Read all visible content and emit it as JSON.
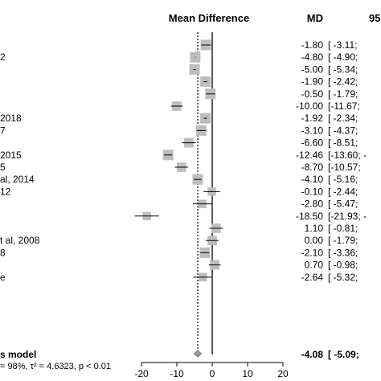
{
  "header": {
    "plot_label": "Mean Difference",
    "md_label": "MD",
    "ci_label": "95"
  },
  "study_labels": [
    "",
    "2",
    "",
    "",
    "",
    "",
    "2018",
    "7",
    "",
    "2015",
    "5",
    "al, 2014",
    "12",
    "",
    "",
    "",
    "t al, 2008",
    "8",
    "",
    "e"
  ],
  "md_values": [
    "-1.80",
    "-4.80",
    "-5.00",
    "-1.90",
    "-0.50",
    "-10.00",
    "-1.92",
    "-3.10",
    "-6.60",
    "-12.46",
    "-8.70",
    "-4.10",
    "-0.10",
    "-2.80",
    "-18.50",
    "1.10",
    "0.00",
    "-2.10",
    "0.70",
    "-2.64"
  ],
  "ci_values": [
    "[ -3.11;",
    "[ -4.90;",
    "[ -5.34;",
    "[ -2.42;",
    "[ -1.79;",
    "[-11.67;",
    "[ -2.34;",
    "[ -4.37;",
    "[ -8.51;",
    "[-13.60; -",
    "[-10.57;",
    "[ -5.16;",
    "[ -2.44;",
    "[ -5.47;",
    "[-21.93; -",
    "[ -0.81;",
    "[ -1.79;",
    "[ -3.36;",
    "[ -0.98;",
    "[ -5.32;"
  ],
  "summary": {
    "label": "s model",
    "heterogeneity": "= 98%, τ² = 4.6323, p < 0.01",
    "md": "-4.08",
    "ci": "[ -5.09;"
  },
  "colors": {
    "box": "#bdbdbd",
    "line": "#000000",
    "diamond": "#9e9e9e"
  },
  "chart_data": {
    "type": "forest",
    "xlabel": "",
    "xlim": [
      -20,
      20
    ],
    "xticks": [
      -20,
      -10,
      0,
      10,
      20
    ],
    "reference_line": 0,
    "summary_line": -4.08,
    "studies": [
      {
        "md": -1.8,
        "lower": -3.11,
        "upper": -0.49,
        "weight": 1.0
      },
      {
        "md": -4.8,
        "lower": -4.9,
        "upper": -4.7,
        "weight": 1.0
      },
      {
        "md": -5.0,
        "lower": -5.34,
        "upper": -4.66,
        "weight": 1.0
      },
      {
        "md": -1.9,
        "lower": -2.42,
        "upper": -1.38,
        "weight": 1.0
      },
      {
        "md": -0.5,
        "lower": -1.79,
        "upper": 0.79,
        "weight": 1.0
      },
      {
        "md": -10.0,
        "lower": -11.67,
        "upper": -8.33,
        "weight": 0.9
      },
      {
        "md": -1.92,
        "lower": -2.34,
        "upper": -1.5,
        "weight": 1.0
      },
      {
        "md": -3.1,
        "lower": -4.37,
        "upper": -1.83,
        "weight": 1.0
      },
      {
        "md": -6.6,
        "lower": -8.51,
        "upper": -4.69,
        "weight": 0.9
      },
      {
        "md": -12.46,
        "lower": -13.6,
        "upper": -11.32,
        "weight": 1.0
      },
      {
        "md": -8.7,
        "lower": -10.57,
        "upper": -6.83,
        "weight": 0.9
      },
      {
        "md": -4.1,
        "lower": -5.16,
        "upper": -3.04,
        "weight": 1.0
      },
      {
        "md": -0.1,
        "lower": -2.44,
        "upper": 2.24,
        "weight": 0.8
      },
      {
        "md": -2.8,
        "lower": -5.47,
        "upper": -0.13,
        "weight": 0.8
      },
      {
        "md": -18.5,
        "lower": -21.93,
        "upper": -15.07,
        "weight": 0.8
      },
      {
        "md": 1.1,
        "lower": -0.81,
        "upper": 3.01,
        "weight": 0.9
      },
      {
        "md": 0.0,
        "lower": -1.79,
        "upper": 1.79,
        "weight": 0.9
      },
      {
        "md": -2.1,
        "lower": -3.36,
        "upper": -0.84,
        "weight": 1.0
      },
      {
        "md": 0.7,
        "lower": -0.98,
        "upper": 2.38,
        "weight": 0.9
      },
      {
        "md": -2.64,
        "lower": -5.32,
        "upper": 0.04,
        "weight": 0.8
      }
    ],
    "pooled": {
      "md": -4.08,
      "lower": -5.09,
      "upper": -3.07
    }
  }
}
